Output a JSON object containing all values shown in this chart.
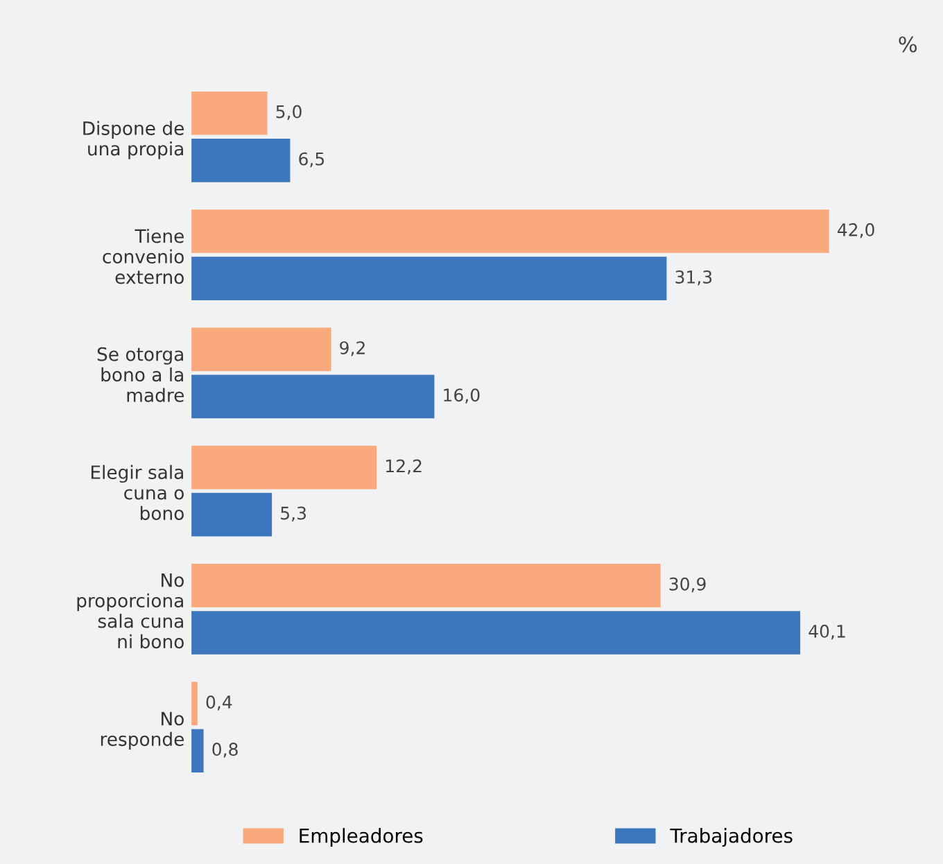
{
  "chart_data": {
    "type": "bar",
    "orientation": "horizontal",
    "categories": [
      "Dispone de\nuna propia",
      "Tiene\nconvenio\nexterno",
      "Se otorga\nbono a la\nmadre",
      "Elegir sala\ncuna o\nbono",
      "No\nproporciona\nsala cuna\nni bono",
      "No\nresponde"
    ],
    "series": [
      {
        "name": "Empleadores",
        "color": "#f9a97c",
        "values": [
          5.0,
          42.0,
          9.2,
          12.2,
          30.9,
          0.4
        ],
        "value_labels": [
          "5,0",
          "42,0",
          "9,2",
          "12,2",
          "30,9",
          "0,4"
        ]
      },
      {
        "name": "Trabajadores",
        "color": "#3d76bd",
        "values": [
          6.5,
          31.3,
          16.0,
          5.3,
          40.1,
          0.8
        ],
        "value_labels": [
          "6,5",
          "31,3",
          "16,0",
          "5,3",
          "40,1",
          "0,8"
        ]
      }
    ],
    "annotations": [
      "%"
    ],
    "legend": "bottom",
    "grid": false
  }
}
